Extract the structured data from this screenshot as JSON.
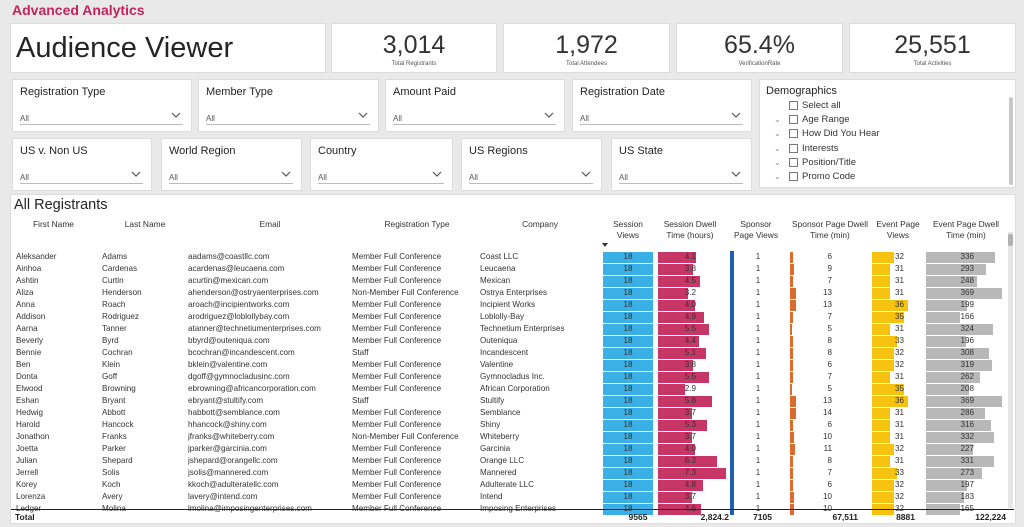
{
  "app_title": "Advanced Analytics",
  "viewer_title": "Audience Viewer",
  "kpis": [
    {
      "value": "3,014",
      "label": "Total Registrants"
    },
    {
      "value": "1,972",
      "label": "Total Attendees"
    },
    {
      "value": "65.4%",
      "label": "VerificationRate"
    },
    {
      "value": "25,551",
      "label": "Total Activities"
    }
  ],
  "slicers": [
    {
      "title": "Registration Type",
      "value": "All"
    },
    {
      "title": "Member Type",
      "value": "All"
    },
    {
      "title": "Amount Paid",
      "value": "All"
    },
    {
      "title": "Registration Date",
      "value": "All"
    },
    {
      "title": "US v. Non US",
      "value": "All"
    },
    {
      "title": "World Region",
      "value": "All"
    },
    {
      "title": "Country",
      "value": "All"
    },
    {
      "title": "US Regions",
      "value": "All"
    },
    {
      "title": "US State",
      "value": "All"
    }
  ],
  "demographics": {
    "title": "Demographics",
    "items": [
      "Select all",
      "Age Range",
      "How Did You Hear",
      "Interests",
      "Position/Title",
      "Promo Code"
    ]
  },
  "table": {
    "title": "All Registrants",
    "headers": [
      "First Name",
      "Last Name",
      "Email",
      "Registration Type",
      "Company",
      "Session Views",
      "Session Dwell Time (hours)",
      "Sponsor Page Views",
      "Sponsor Page Dwell Time (min)",
      "Event Page Views",
      "Event Page Dwell Time (min)"
    ],
    "rows": [
      [
        "Aleksander",
        "Adams",
        "aadams@coastllc.com",
        "Member Full Conference",
        "Coast LLC",
        "18",
        "4.1",
        "1",
        "6",
        "32",
        "336"
      ],
      [
        "Ainhoa",
        "Cardenas",
        "acardenas@leucaena.com",
        "Member Full Conference",
        "Leucaena",
        "18",
        "3.8",
        "1",
        "9",
        "31",
        "293"
      ],
      [
        "Ashtin",
        "Curtin",
        "acurtin@mexican.com",
        "Member Full Conference",
        "Mexican",
        "18",
        "4.5",
        "1",
        "7",
        "31",
        "248"
      ],
      [
        "Aliza",
        "Henderson",
        "ahenderson@ostryaenterprises.com",
        "Non-Member Full Conference",
        "Ostrya Enterprises",
        "18",
        "3.2",
        "1",
        "13",
        "31",
        "369"
      ],
      [
        "Anna",
        "Roach",
        "aroach@incipientworks.com",
        "Member Full Conference",
        "Incipient Works",
        "18",
        "4.0",
        "1",
        "13",
        "36",
        "199"
      ],
      [
        "Addison",
        "Rodriguez",
        "arodriguez@loblollybay.com",
        "Member Full Conference",
        "Loblolly-Bay",
        "18",
        "4.9",
        "1",
        "7",
        "35",
        "166"
      ],
      [
        "Aarna",
        "Tanner",
        "atanner@technetiumenterprises.com",
        "Member Full Conference",
        "Technetium Enterprises",
        "18",
        "5.5",
        "1",
        "5",
        "31",
        "324"
      ],
      [
        "Beverly",
        "Byrd",
        "bbyrd@outeniqua.com",
        "Member Full Conference",
        "Outeniqua",
        "18",
        "4.4",
        "1",
        "8",
        "33",
        "196"
      ],
      [
        "Bennie",
        "Cochran",
        "bcochran@incandescent.com",
        "Staff",
        "Incandescent",
        "18",
        "5.1",
        "1",
        "8",
        "32",
        "308"
      ],
      [
        "Ben",
        "Klein",
        "bklein@valentine.com",
        "Member Full Conference",
        "Valentine",
        "18",
        "3.8",
        "1",
        "6",
        "32",
        "319"
      ],
      [
        "Donta",
        "Goff",
        "dgoff@gymnocladusinc.com",
        "Member Full Conference",
        "Gymnocladus Inc.",
        "18",
        "5.5",
        "1",
        "7",
        "31",
        "262"
      ],
      [
        "Elwood",
        "Browning",
        "ebrowning@africancorporation.com",
        "Member Full Conference",
        "African Corporation",
        "18",
        "2.9",
        "1",
        "5",
        "35",
        "208"
      ],
      [
        "Eshan",
        "Bryant",
        "ebryant@stultify.com",
        "Staff",
        "Stultify",
        "18",
        "5.8",
        "1",
        "13",
        "36",
        "369"
      ],
      [
        "Hedwig",
        "Abbott",
        "habbott@semblance.com",
        "Member Full Conference",
        "Semblance",
        "18",
        "3.7",
        "1",
        "14",
        "31",
        "286"
      ],
      [
        "Harold",
        "Hancock",
        "hhancock@shiny.com",
        "Member Full Conference",
        "Shiny",
        "18",
        "5.3",
        "1",
        "6",
        "31",
        "316"
      ],
      [
        "Jonathon",
        "Franks",
        "jfranks@whiteberry.com",
        "Non-Member Full Conference",
        "Whiteberry",
        "18",
        "3.7",
        "1",
        "10",
        "31",
        "332"
      ],
      [
        "Joetta",
        "Parker",
        "jparker@garcinia.com",
        "Member Full Conference",
        "Garcinia",
        "18",
        "4.0",
        "1",
        "11",
        "32",
        "227"
      ],
      [
        "Julian",
        "Shepard",
        "jshepard@orangellc.com",
        "Member Full Conference",
        "Orange LLC",
        "18",
        "6.3",
        "1",
        "8",
        "31",
        "331"
      ],
      [
        "Jerrell",
        "Solis",
        "jsolis@mannered.com",
        "Member Full Conference",
        "Mannered",
        "18",
        "7.3",
        "1",
        "7",
        "33",
        "273"
      ],
      [
        "Korey",
        "Koch",
        "kkoch@adulteratellc.com",
        "Member Full Conference",
        "Adulterate LLC",
        "18",
        "4.8",
        "1",
        "6",
        "32",
        "197"
      ],
      [
        "Lorenza",
        "Avery",
        "lavery@intend.com",
        "Member Full Conference",
        "Intend",
        "18",
        "3.7",
        "1",
        "10",
        "32",
        "183"
      ],
      [
        "Ledger",
        "Molina",
        "lmolina@imposingenterprises.com",
        "Member Full Conference",
        "Imposing Enterprises",
        "18",
        "4.6",
        "1",
        "10",
        "32",
        "165"
      ]
    ],
    "totals": {
      "label": "Total",
      "session_views": "9565",
      "session_dwell": "2,824.2",
      "sponsor_views": "7105",
      "sponsor_dwell": "67,511",
      "event_views": "8881",
      "event_dwell": "122,224"
    }
  },
  "colors": {
    "title_accent": "#c4245a",
    "session_views_bar": "#3bb0e6",
    "session_dwell_bar": "#c63666",
    "sponsor_views_bar": "#1f5fb0",
    "sponsor_dwell_bar": "#dc6c2c",
    "event_views_bar": "#f4c20f",
    "event_dwell_bar": "#b8b8b8"
  }
}
